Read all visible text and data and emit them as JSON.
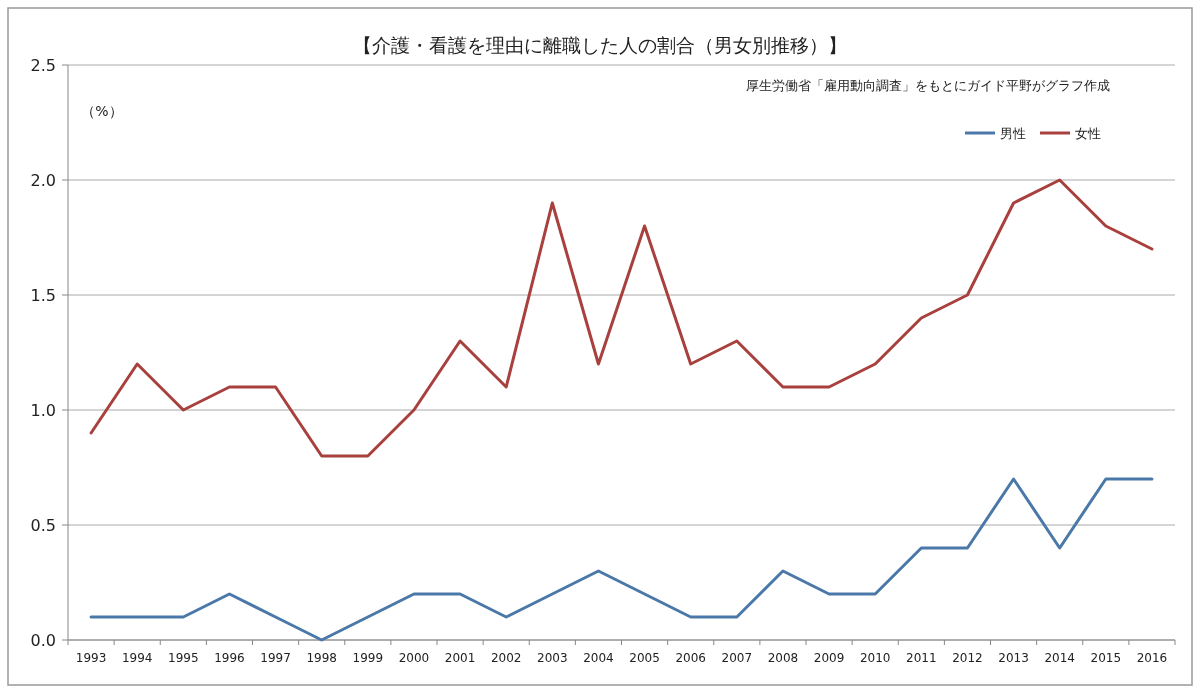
{
  "chart_data": {
    "type": "line",
    "title": "【介護・看護を理由に離職した人の割合（男女別推移）】",
    "ylabel": "（%）",
    "annotations": [
      "厚生労働省「雇用動向調査」をもとにガイド平野がグラフ作成"
    ],
    "categories": [
      "1993",
      "1994",
      "1995",
      "1996",
      "1997",
      "1998",
      "1999",
      "2000",
      "2001",
      "2002",
      "2003",
      "2004",
      "2005",
      "2006",
      "2007",
      "2008",
      "2009",
      "2010",
      "2011",
      "2012",
      "2013",
      "2014",
      "2015",
      "2016"
    ],
    "series": [
      {
        "name": "男性",
        "color": "#4a78a8",
        "values": [
          0.1,
          0.1,
          0.1,
          0.2,
          0.1,
          0.0,
          0.1,
          0.2,
          0.2,
          0.1,
          0.2,
          0.3,
          0.2,
          0.1,
          0.1,
          0.3,
          0.2,
          0.2,
          0.4,
          0.4,
          0.7,
          0.4,
          0.7,
          0.7
        ]
      },
      {
        "name": "女性",
        "color": "#a8403d",
        "values": [
          0.9,
          1.2,
          1.0,
          1.1,
          1.1,
          0.8,
          0.8,
          1.0,
          1.3,
          1.1,
          1.9,
          1.2,
          1.8,
          1.2,
          1.3,
          1.1,
          1.1,
          1.2,
          1.4,
          1.5,
          1.9,
          2.0,
          1.8,
          1.7
        ]
      }
    ],
    "ylim": [
      0,
      2.5
    ],
    "yticks": [
      {
        "value": 0,
        "label": "0.0"
      },
      {
        "value": 0.5,
        "label": "0.5"
      },
      {
        "value": 1,
        "label": "1.0"
      },
      {
        "value": 1.5,
        "label": "1.5"
      },
      {
        "value": 2,
        "label": "2.0"
      },
      {
        "value": 2.5,
        "label": "2.5"
      }
    ],
    "grid": "y",
    "legend": "top right",
    "marker": "none",
    "line_style": "solid"
  }
}
